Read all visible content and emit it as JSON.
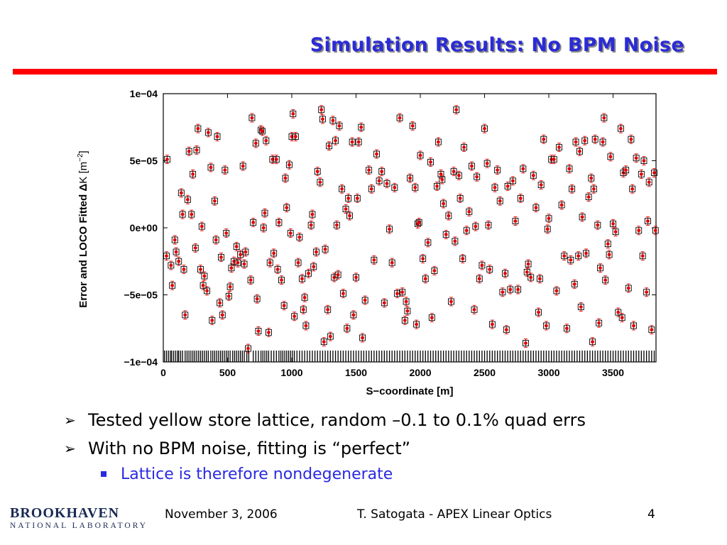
{
  "slide": {
    "title": "Simulation Results: No BPM Noise",
    "accent_color": "#ff0000",
    "title_color": "#2b2bd6"
  },
  "bullets": [
    "Tested yellow store lattice, random –0.1 to 0.1% quad errs",
    "With no BPM noise, fitting is “perfect”"
  ],
  "sub_bullet": "Lattice is therefore nondegenerate",
  "footer": {
    "logo_main": "BROOKHAVEN",
    "logo_sub": "NATIONAL LABORATORY",
    "date": "November 3, 2006",
    "author": "T. Satogata - APEX Linear Optics",
    "page": "4"
  },
  "chart_data": {
    "type": "scatter",
    "xlabel": "S−coordinate [m]",
    "ylabel_parts": [
      "Error and LOCO Fitted ",
      "Δ",
      "K [m",
      "−2",
      "]"
    ],
    "xlim": [
      0,
      3834
    ],
    "ylim": [
      -0.0001,
      0.0001
    ],
    "x_ticks": [
      0,
      500,
      1000,
      1500,
      2000,
      2500,
      3000,
      3500
    ],
    "x_tick_labels": [
      "0",
      "500",
      "1000",
      "1500",
      "2000",
      "2500",
      "3000",
      "3500"
    ],
    "y_ticks": [
      0.0001,
      5e-05,
      0,
      -5e-05,
      -0.0001
    ],
    "y_tick_labels": [
      "1e−04",
      "5e−05",
      "0e+00",
      "−5e−05",
      "−1e−04"
    ],
    "grid": false,
    "marker_color": "#e00000",
    "errorbar_color": "#e00000",
    "box_color": "#000000",
    "points": [
      [
        25,
        -2.1e-05
      ],
      [
        30,
        5.1e-05
      ],
      [
        60,
        -2.8e-05
      ],
      [
        70,
        -4.3e-05
      ],
      [
        90,
        -9e-06
      ],
      [
        100,
        -1.8e-05
      ],
      [
        120,
        -2.5e-05
      ],
      [
        140,
        2.6e-05
      ],
      [
        150,
        1e-05
      ],
      [
        160,
        -3.1e-05
      ],
      [
        170,
        -6.5e-05
      ],
      [
        190,
        2.1e-05
      ],
      [
        200,
        5.7e-05
      ],
      [
        220,
        1e-05
      ],
      [
        230,
        4e-05
      ],
      [
        250,
        -1.5e-05
      ],
      [
        260,
        5.8e-05
      ],
      [
        270,
        7.4e-05
      ],
      [
        290,
        -3.1e-05
      ],
      [
        300,
        1e-06
      ],
      [
        310,
        -4.3e-05
      ],
      [
        320,
        -3.6e-05
      ],
      [
        340,
        -4.7e-05
      ],
      [
        350,
        7.1e-05
      ],
      [
        370,
        4.5e-05
      ],
      [
        380,
        -6.9e-05
      ],
      [
        400,
        2e-05
      ],
      [
        410,
        -9e-06
      ],
      [
        420,
        6.8e-05
      ],
      [
        440,
        -5.6e-05
      ],
      [
        450,
        -2.2e-05
      ],
      [
        460,
        -6.5e-05
      ],
      [
        480,
        4.3e-05
      ],
      [
        490,
        -4e-06
      ],
      [
        510,
        -5.1e-05
      ],
      [
        520,
        -4.4e-05
      ],
      [
        530,
        -3e-05
      ],
      [
        550,
        -2.5e-05
      ],
      [
        570,
        -1.4e-05
      ],
      [
        580,
        -2.6e-05
      ],
      [
        600,
        -2e-05
      ],
      [
        620,
        4.6e-05
      ],
      [
        630,
        -2.7e-05
      ],
      [
        640,
        -1.8e-05
      ],
      [
        660,
        -9e-05
      ],
      [
        680,
        -3.9e-05
      ],
      [
        690,
        8.2e-05
      ],
      [
        700,
        4e-06
      ],
      [
        720,
        6.3e-05
      ],
      [
        730,
        -5.3e-05
      ],
      [
        740,
        -7.7e-05
      ],
      [
        760,
        7.3e-05
      ],
      [
        770,
        7.2e-05
      ],
      [
        780,
        0.0
      ],
      [
        790,
        1.1e-05
      ],
      [
        800,
        6.5e-05
      ],
      [
        820,
        -7.8e-05
      ],
      [
        830,
        -2.6e-05
      ],
      [
        850,
        5.1e-05
      ],
      [
        860,
        -1.9e-05
      ],
      [
        880,
        5.1e-05
      ],
      [
        890,
        -3.1e-05
      ],
      [
        900,
        4e-06
      ],
      [
        920,
        -3.9e-05
      ],
      [
        940,
        -5.8e-05
      ],
      [
        950,
        3.7e-05
      ],
      [
        960,
        1.5e-05
      ],
      [
        980,
        4.7e-05
      ],
      [
        990,
        -4e-06
      ],
      [
        1000,
        6.8e-05
      ],
      [
        1010,
        8.5e-05
      ],
      [
        1020,
        -6.6e-05
      ],
      [
        1030,
        6.8e-05
      ],
      [
        1050,
        -2.6e-05
      ],
      [
        1060,
        -7e-06
      ],
      [
        1080,
        -3.8e-05
      ],
      [
        1090,
        -6.1e-05
      ],
      [
        1100,
        -5.2e-05
      ],
      [
        1110,
        -7.3e-05
      ],
      [
        1130,
        -3.4e-05
      ],
      [
        1150,
        2e-06
      ],
      [
        1160,
        1e-05
      ],
      [
        1170,
        -2.9e-05
      ],
      [
        1190,
        -1.8e-05
      ],
      [
        1200,
        4.2e-05
      ],
      [
        1220,
        3.4e-05
      ],
      [
        1230,
        8.8e-05
      ],
      [
        1240,
        8.1e-05
      ],
      [
        1250,
        -8.5e-05
      ],
      [
        1260,
        -1.6e-05
      ],
      [
        1280,
        -6.1e-05
      ],
      [
        1290,
        6.1e-05
      ],
      [
        1300,
        -8.1e-05
      ],
      [
        1320,
        8e-05
      ],
      [
        1330,
        -3.7e-05
      ],
      [
        1340,
        6.5e-05
      ],
      [
        1350,
        2e-06
      ],
      [
        1360,
        -3.5e-05
      ],
      [
        1370,
        7.6e-05
      ],
      [
        1390,
        2.9e-05
      ],
      [
        1400,
        -4.9e-05
      ],
      [
        1420,
        1.4e-05
      ],
      [
        1430,
        -7.5e-05
      ],
      [
        1440,
        2.2e-05
      ],
      [
        1450,
        9e-06
      ],
      [
        1470,
        6.4e-05
      ],
      [
        1480,
        -6.5e-05
      ],
      [
        1500,
        -3.7e-05
      ],
      [
        1510,
        2.2e-05
      ],
      [
        1520,
        6.4e-05
      ],
      [
        1540,
        7.5e-05
      ],
      [
        1550,
        -8.2e-05
      ],
      [
        1570,
        -5.4e-05
      ],
      [
        1600,
        4.3e-05
      ],
      [
        1620,
        2.9e-05
      ],
      [
        1640,
        -2.4e-05
      ],
      [
        1660,
        5.5e-05
      ],
      [
        1680,
        3.5e-05
      ],
      [
        1700,
        4.2e-05
      ],
      [
        1720,
        -5.6e-05
      ],
      [
        1740,
        3.3e-05
      ],
      [
        1760,
        -1e-06
      ],
      [
        1780,
        -2.6e-05
      ],
      [
        1800,
        3e-05
      ],
      [
        1820,
        -4.9e-05
      ],
      [
        1840,
        8.2e-05
      ],
      [
        1860,
        -4.8e-05
      ],
      [
        1880,
        -6.9e-05
      ],
      [
        1890,
        -5.5e-05
      ],
      [
        1900,
        -6.2e-05
      ],
      [
        1920,
        3.7e-05
      ],
      [
        1940,
        7.6e-05
      ],
      [
        1960,
        3e-05
      ],
      [
        1970,
        -7.2e-05
      ],
      [
        1980,
        3e-06
      ],
      [
        1990,
        4e-06
      ],
      [
        2000,
        5.4e-05
      ],
      [
        2020,
        -2.3e-05
      ],
      [
        2040,
        -3.8e-05
      ],
      [
        2060,
        -1.1e-05
      ],
      [
        2080,
        4.9e-05
      ],
      [
        2090,
        -6.7e-05
      ],
      [
        2110,
        -3.2e-05
      ],
      [
        2130,
        3.1e-05
      ],
      [
        2140,
        6.4e-05
      ],
      [
        2160,
        4e-05
      ],
      [
        2170,
        3.6e-05
      ],
      [
        2180,
        1.8e-05
      ],
      [
        2200,
        -5e-06
      ],
      [
        2220,
        9e-06
      ],
      [
        2240,
        -5.5e-05
      ],
      [
        2260,
        4.2e-05
      ],
      [
        2270,
        -1e-05
      ],
      [
        2280,
        8.8e-05
      ],
      [
        2300,
        3.9e-05
      ],
      [
        2310,
        2.2e-05
      ],
      [
        2330,
        -2.3e-05
      ],
      [
        2340,
        6e-05
      ],
      [
        2360,
        -2e-06
      ],
      [
        2380,
        1.2e-05
      ],
      [
        2400,
        4.6e-05
      ],
      [
        2420,
        -6.1e-05
      ],
      [
        2430,
        1e-06
      ],
      [
        2440,
        3.8e-05
      ],
      [
        2460,
        -3.8e-05
      ],
      [
        2480,
        -2.8e-05
      ],
      [
        2500,
        7.4e-05
      ],
      [
        2520,
        4.8e-05
      ],
      [
        2530,
        2e-06
      ],
      [
        2540,
        -3.1e-05
      ],
      [
        2560,
        -7.2e-05
      ],
      [
        2580,
        3e-05
      ],
      [
        2600,
        4.3e-05
      ],
      [
        2620,
        2e-05
      ],
      [
        2640,
        -4.8e-05
      ],
      [
        2660,
        -3.4e-05
      ],
      [
        2670,
        -7.6e-05
      ],
      [
        2680,
        3.1e-05
      ],
      [
        2700,
        -4.6e-05
      ],
      [
        2720,
        3.5e-05
      ],
      [
        2740,
        5e-06
      ],
      [
        2760,
        -4.6e-05
      ],
      [
        2780,
        2.2e-05
      ],
      [
        2800,
        4.4e-05
      ],
      [
        2820,
        -8.6e-05
      ],
      [
        2830,
        -3.3e-05
      ],
      [
        2840,
        -2.7e-05
      ],
      [
        2860,
        -3.7e-05
      ],
      [
        2880,
        3.9e-05
      ],
      [
        2900,
        1.5e-05
      ],
      [
        2920,
        -6.3e-05
      ],
      [
        2930,
        -3.8e-05
      ],
      [
        2940,
        3.2e-05
      ],
      [
        2960,
        6.6e-05
      ],
      [
        2980,
        -7.3e-05
      ],
      [
        2990,
        -1e-06
      ],
      [
        3000,
        7e-06
      ],
      [
        3020,
        5.1e-05
      ],
      [
        3040,
        5.1e-05
      ],
      [
        3060,
        -4.7e-05
      ],
      [
        3080,
        6e-05
      ],
      [
        3100,
        1.7e-05
      ],
      [
        3120,
        -2.1e-05
      ],
      [
        3140,
        -7.5e-05
      ],
      [
        3160,
        4.4e-05
      ],
      [
        3170,
        -2.4e-05
      ],
      [
        3180,
        2.9e-05
      ],
      [
        3200,
        -4.2e-05
      ],
      [
        3210,
        6.4e-05
      ],
      [
        3230,
        -2.1e-05
      ],
      [
        3240,
        5.7e-05
      ],
      [
        3250,
        -5.9e-05
      ],
      [
        3260,
        8e-06
      ],
      [
        3280,
        6.5e-05
      ],
      [
        3290,
        -1.9e-05
      ],
      [
        3310,
        2.3e-05
      ],
      [
        3330,
        3.7e-05
      ],
      [
        3340,
        -8.5e-05
      ],
      [
        3350,
        2.9e-05
      ],
      [
        3360,
        6.6e-05
      ],
      [
        3380,
        2e-06
      ],
      [
        3390,
        -7.1e-05
      ],
      [
        3400,
        -3e-05
      ],
      [
        3420,
        6.4e-05
      ],
      [
        3430,
        8.2e-05
      ],
      [
        3440,
        -3.9e-05
      ],
      [
        3460,
        -1.2e-05
      ],
      [
        3470,
        -2e-05
      ],
      [
        3480,
        5.3e-05
      ],
      [
        3500,
        3e-06
      ],
      [
        3520,
        -3e-06
      ],
      [
        3540,
        -6.3e-05
      ],
      [
        3560,
        7.4e-05
      ],
      [
        3570,
        -6.7e-05
      ],
      [
        3580,
        4.1e-05
      ],
      [
        3600,
        4.3e-05
      ],
      [
        3620,
        -4.5e-05
      ],
      [
        3640,
        6.6e-05
      ],
      [
        3650,
        2.9e-05
      ],
      [
        3660,
        -7.3e-05
      ],
      [
        3680,
        5.2e-05
      ],
      [
        3700,
        -2e-06
      ],
      [
        3720,
        4e-05
      ],
      [
        3730,
        -2.1e-05
      ],
      [
        3740,
        5e-05
      ],
      [
        3760,
        -4.8e-05
      ],
      [
        3770,
        5e-06
      ],
      [
        3780,
        3.4e-05
      ],
      [
        3800,
        -7.6e-05
      ],
      [
        3820,
        4.1e-05
      ],
      [
        3830,
        -2e-06
      ]
    ],
    "bpm_positions": [
      10,
      25,
      40,
      55,
      65,
      80,
      95,
      110,
      120,
      135,
      150,
      170,
      185,
      200,
      215,
      230,
      245,
      260,
      275,
      290,
      305,
      320,
      335,
      350,
      370,
      385,
      400,
      415,
      430,
      445,
      460,
      475,
      490,
      505,
      520,
      540,
      555,
      570,
      585,
      600,
      615,
      630,
      650,
      665,
      700,
      720,
      740,
      760,
      775,
      790,
      805,
      820,
      840,
      860,
      880,
      900,
      915,
      930,
      945,
      960,
      975,
      990,
      1005,
      1020,
      1040,
      1060,
      1080,
      1100,
      1120,
      1140,
      1160,
      1180,
      1200,
      1220,
      1240,
      1260,
      1280,
      1300,
      1320,
      1340,
      1360,
      1380,
      1400,
      1420,
      1440,
      1460,
      1480,
      1500,
      1520,
      1540,
      1560,
      1580,
      1600,
      1620,
      1640,
      1660,
      1680,
      1700,
      1720,
      1740,
      1760,
      1780,
      1800,
      1820,
      1840,
      1860,
      1880,
      1900,
      1920,
      1940,
      1960,
      1980,
      2000,
      2020,
      2040,
      2060,
      2080,
      2100,
      2120,
      2140,
      2160,
      2180,
      2200,
      2220,
      2240,
      2260,
      2280,
      2300,
      2320,
      2340,
      2360,
      2380,
      2400,
      2420,
      2440,
      2460,
      2480,
      2500,
      2520,
      2540,
      2560,
      2580,
      2600,
      2620,
      2640,
      2660,
      2680,
      2700,
      2720,
      2740,
      2760,
      2780,
      2800,
      2820,
      2840,
      2860,
      2880,
      2900,
      2920,
      2940,
      2960,
      2980,
      3000,
      3020,
      3040,
      3060,
      3080,
      3100,
      3120,
      3140,
      3160,
      3180,
      3200,
      3220,
      3240,
      3260,
      3280,
      3300,
      3320,
      3340,
      3360,
      3380,
      3400,
      3420,
      3440,
      3460,
      3480,
      3500,
      3520,
      3540,
      3560,
      3580,
      3600,
      3620,
      3640,
      3660,
      3680,
      3700,
      3720,
      3740,
      3760,
      3780,
      3800,
      3820
    ]
  }
}
